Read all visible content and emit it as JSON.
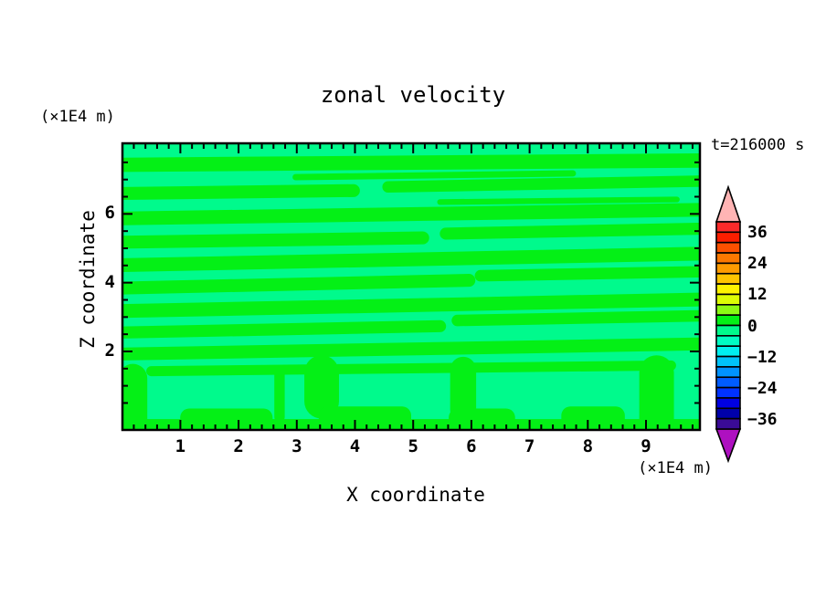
{
  "chart_data": {
    "type": "heatmap",
    "subtype": "filled-contour",
    "title": "zonal velocity",
    "xlabel": "X coordinate",
    "ylabel": "Z coordinate",
    "x_unit": "(×1E4 m)",
    "y_unit": "(×1E4 m)",
    "annotation": "t=216000 s",
    "xlim": [
      0,
      9.9
    ],
    "ylim": [
      0,
      8.1
    ],
    "x_major_ticks": [
      "1",
      "2",
      "3",
      "4",
      "5",
      "6",
      "7",
      "8",
      "9"
    ],
    "x_major_tick_values": [
      1,
      2,
      3,
      4,
      5,
      6,
      7,
      8,
      9
    ],
    "x_minor_step": 0.2,
    "y_major_ticks": [
      "2",
      "4",
      "6"
    ],
    "y_major_tick_values": [
      2,
      4,
      6
    ],
    "y_minor_step": 0.5,
    "grid": false,
    "legend_position": "right-colorbar",
    "contour_interval": 4,
    "level_range": [
      -40,
      40
    ],
    "colorbar_labels": [
      "36",
      "24",
      "12",
      "0",
      "−12",
      "−24",
      "−36"
    ],
    "colorbar_label_values": [
      36,
      24,
      12,
      0,
      -12,
      -24,
      -36
    ],
    "palette_top_to_bottom": [
      "#FC2A2A",
      "#FB1E00",
      "#FC5000",
      "#FC7800",
      "#FF9B00",
      "#FFC400",
      "#FDF200",
      "#DCFC05",
      "#8CF914",
      "#04F016",
      "#00FA8C",
      "#00FCC3",
      "#00F0F0",
      "#00C3FA",
      "#0092FF",
      "#005CFF",
      "#0032FF",
      "#0000E1",
      "#0000AA",
      "#3A0B96"
    ],
    "over_color": "#FFB4B4",
    "under_color": "#AE10C0",
    "displayed_value_range": [
      -4,
      4
    ],
    "field": {
      "positive_color": "#04F016",
      "negative_color": "#00FA8C",
      "note": "Field values stay within -4..4 m/s: thin alternating horizontal shear bands above z=2, broad convective blobs below z=2.",
      "stripes": [
        [
          0.0,
          0.075,
          1.0,
          0.06,
          0.05
        ],
        [
          0.3,
          0.118,
          0.78,
          0.105,
          0.022
        ],
        [
          0.0,
          0.175,
          0.4,
          0.165,
          0.045
        ],
        [
          0.46,
          0.152,
          1.0,
          0.132,
          0.04
        ],
        [
          0.55,
          0.205,
          0.96,
          0.196,
          0.02
        ],
        [
          0.0,
          0.262,
          1.0,
          0.232,
          0.048
        ],
        [
          0.0,
          0.345,
          0.52,
          0.33,
          0.045
        ],
        [
          0.56,
          0.315,
          1.0,
          0.298,
          0.042
        ],
        [
          0.0,
          0.425,
          1.0,
          0.385,
          0.048
        ],
        [
          0.0,
          0.505,
          0.6,
          0.478,
          0.045
        ],
        [
          0.62,
          0.462,
          1.0,
          0.448,
          0.04
        ],
        [
          0.0,
          0.585,
          1.0,
          0.545,
          0.048
        ],
        [
          0.6,
          0.553,
          0.95,
          0.543,
          0.018
        ],
        [
          0.0,
          0.66,
          0.55,
          0.638,
          0.042
        ],
        [
          0.58,
          0.618,
          1.0,
          0.602,
          0.04
        ],
        [
          0.0,
          0.735,
          1.0,
          0.7,
          0.045
        ],
        [
          0.05,
          0.795,
          0.95,
          0.775,
          0.035
        ]
      ],
      "bottom_strip": {
        "y": 0.962,
        "bumps": [
          {
            "x0": 0.1,
            "x1": 0.26,
            "top": 0.925
          },
          {
            "x0": 0.34,
            "x1": 0.5,
            "top": 0.918
          },
          {
            "x0": 0.565,
            "x1": 0.68,
            "top": 0.925
          },
          {
            "x0": 0.76,
            "x1": 0.87,
            "top": 0.918
          }
        ]
      },
      "columns": [
        {
          "x": 0.018,
          "y0": 0.82,
          "y1": 0.975,
          "w": 0.05
        },
        {
          "x": 0.272,
          "y0": 0.81,
          "y1": 0.955,
          "w": 0.018
        },
        {
          "x": 0.345,
          "y0": 0.8,
          "y1": 0.9,
          "w": 0.06
        },
        {
          "x": 0.59,
          "y0": 0.79,
          "y1": 0.93,
          "w": 0.045
        },
        {
          "x": 0.925,
          "y0": 0.8,
          "y1": 0.97,
          "w": 0.06
        }
      ]
    }
  }
}
